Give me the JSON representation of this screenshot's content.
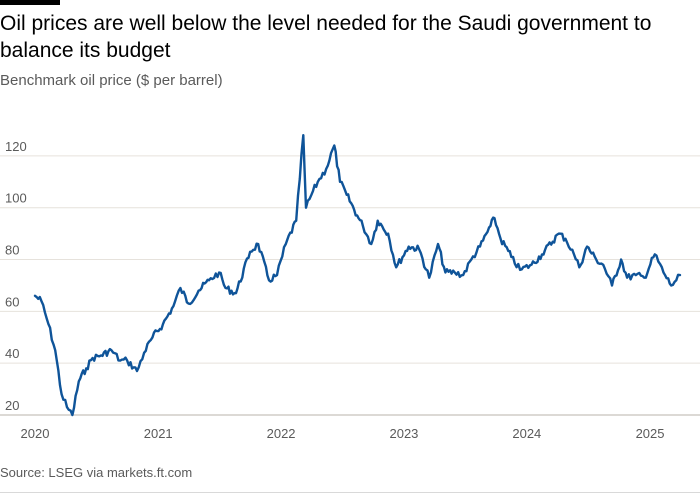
{
  "header": {
    "title": "Oil prices are well below the level needed for the Saudi government to balance its budget",
    "subtitle": "Benchmark oil price ($ per barrel)"
  },
  "footer": {
    "source": "Source: LSEG via markets.ft.com"
  },
  "colors": {
    "series": "#0f5499",
    "grid": "#e6e2dc",
    "text_muted": "#5a5a5a",
    "accent_bar": "#000000"
  },
  "chart_data": {
    "type": "line",
    "title": "Oil prices are well below the level needed for the Saudi government to balance its budget",
    "subtitle": "Benchmark oil price ($ per barrel)",
    "xlabel": "",
    "ylabel": "",
    "xlim": [
      "2020-01-01",
      "2025-03-31"
    ],
    "ylim": [
      20,
      130
    ],
    "y_ticks": [
      20,
      40,
      60,
      80,
      100,
      120
    ],
    "x_ticks": [
      {
        "label": "2020",
        "date": "2020-01-01"
      },
      {
        "label": "2021",
        "date": "2021-01-01"
      },
      {
        "label": "2022",
        "date": "2022-01-01"
      },
      {
        "label": "2023",
        "date": "2023-01-01"
      },
      {
        "label": "2024",
        "date": "2024-01-01"
      },
      {
        "label": "2025",
        "date": "2025-01-01"
      }
    ],
    "grid": "horizontal",
    "legend": "none",
    "series": [
      {
        "x": [
          "2020-01-01",
          "2020-01-20",
          "2020-02-10",
          "2020-03-01",
          "2020-03-20",
          "2020-04-05",
          "2020-04-21",
          "2020-05-10",
          "2020-06-01",
          "2020-06-20",
          "2020-07-15",
          "2020-08-15",
          "2020-09-10",
          "2020-10-01",
          "2020-10-30",
          "2020-11-20",
          "2020-12-15",
          "2021-01-15",
          "2021-02-15",
          "2021-03-08",
          "2021-04-01",
          "2021-05-01",
          "2021-06-01",
          "2021-07-01",
          "2021-07-20",
          "2021-08-20",
          "2021-10-01",
          "2021-10-25",
          "2021-11-26",
          "2021-12-20",
          "2022-01-15",
          "2022-02-15",
          "2022-03-08",
          "2022-03-16",
          "2022-04-01",
          "2022-04-20",
          "2022-05-15",
          "2022-06-08",
          "2022-06-25",
          "2022-07-15",
          "2022-08-15",
          "2022-09-01",
          "2022-09-26",
          "2022-10-15",
          "2022-11-15",
          "2022-12-09",
          "2023-01-15",
          "2023-02-15",
          "2023-03-17",
          "2023-04-12",
          "2023-05-04",
          "2023-06-01",
          "2023-06-26",
          "2023-07-20",
          "2023-08-15",
          "2023-09-15",
          "2023-09-27",
          "2023-10-15",
          "2023-11-16",
          "2023-12-12",
          "2024-01-15",
          "2024-02-15",
          "2024-04-05",
          "2024-04-25",
          "2024-05-20",
          "2024-06-05",
          "2024-06-28",
          "2024-07-25",
          "2024-08-15",
          "2024-09-10",
          "2024-10-07",
          "2024-10-25",
          "2024-11-20",
          "2024-12-15",
          "2025-01-15",
          "2025-02-10",
          "2025-03-05",
          "2025-03-20",
          "2025-03-31"
        ],
        "y": [
          66,
          64,
          55,
          45,
          28,
          23,
          20,
          33,
          38,
          42,
          43,
          45,
          41,
          41,
          37,
          44,
          50,
          55,
          62,
          69,
          63,
          68,
          72,
          75,
          69,
          67,
          83,
          86,
          72,
          74,
          86,
          95,
          128,
          100,
          105,
          110,
          115,
          124,
          110,
          105,
          97,
          93,
          86,
          95,
          90,
          77,
          85,
          84,
          73,
          86,
          75,
          75,
          74,
          80,
          85,
          93,
          96,
          88,
          81,
          76,
          78,
          82,
          90,
          88,
          82,
          77,
          85,
          80,
          78,
          70,
          80,
          73,
          74,
          73,
          82,
          75,
          70,
          72,
          74
        ]
      }
    ]
  }
}
